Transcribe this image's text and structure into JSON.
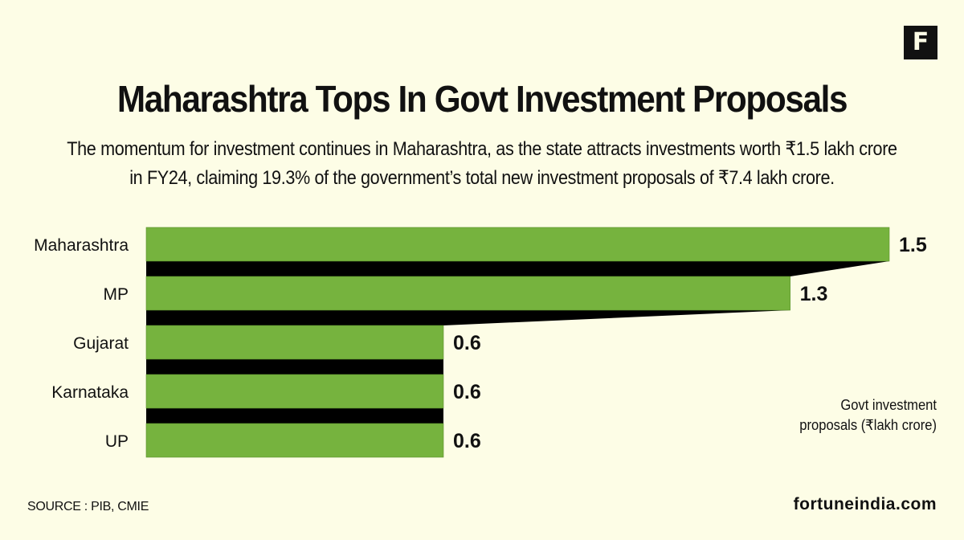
{
  "brand": {
    "logo_letter": "F",
    "site": "fortuneindia.com"
  },
  "header": {
    "title": "Maharashtra Tops In Govt Investment Proposals",
    "subtitle_line1": "The momentum for investment continues in Maharashtra, as the state attracts investments worth ₹1.5 lakh crore",
    "subtitle_line2": "in FY24, claiming 19.3% of the government’s total new investment proposals of ₹7.4 lakh crore."
  },
  "footer": {
    "source": "SOURCE : PIB, CMIE"
  },
  "colors": {
    "bar": "#76b33e",
    "shadow": "#000000",
    "background": "#fdfde6"
  },
  "chart_data": {
    "type": "bar",
    "orientation": "horizontal",
    "categories": [
      "Maharashtra",
      "MP",
      "Gujarat",
      "Karnataka",
      "UP"
    ],
    "values": [
      1.5,
      1.3,
      0.6,
      0.6,
      0.6
    ],
    "value_labels": [
      "1.5",
      "1.3",
      "0.6",
      "0.6",
      "0.6"
    ],
    "unit_label_line1": "Govt investment",
    "unit_label_line2": "proposals (₹lakh crore)",
    "xlim": [
      0,
      1.5
    ],
    "grid": false,
    "axes_visible": false
  }
}
